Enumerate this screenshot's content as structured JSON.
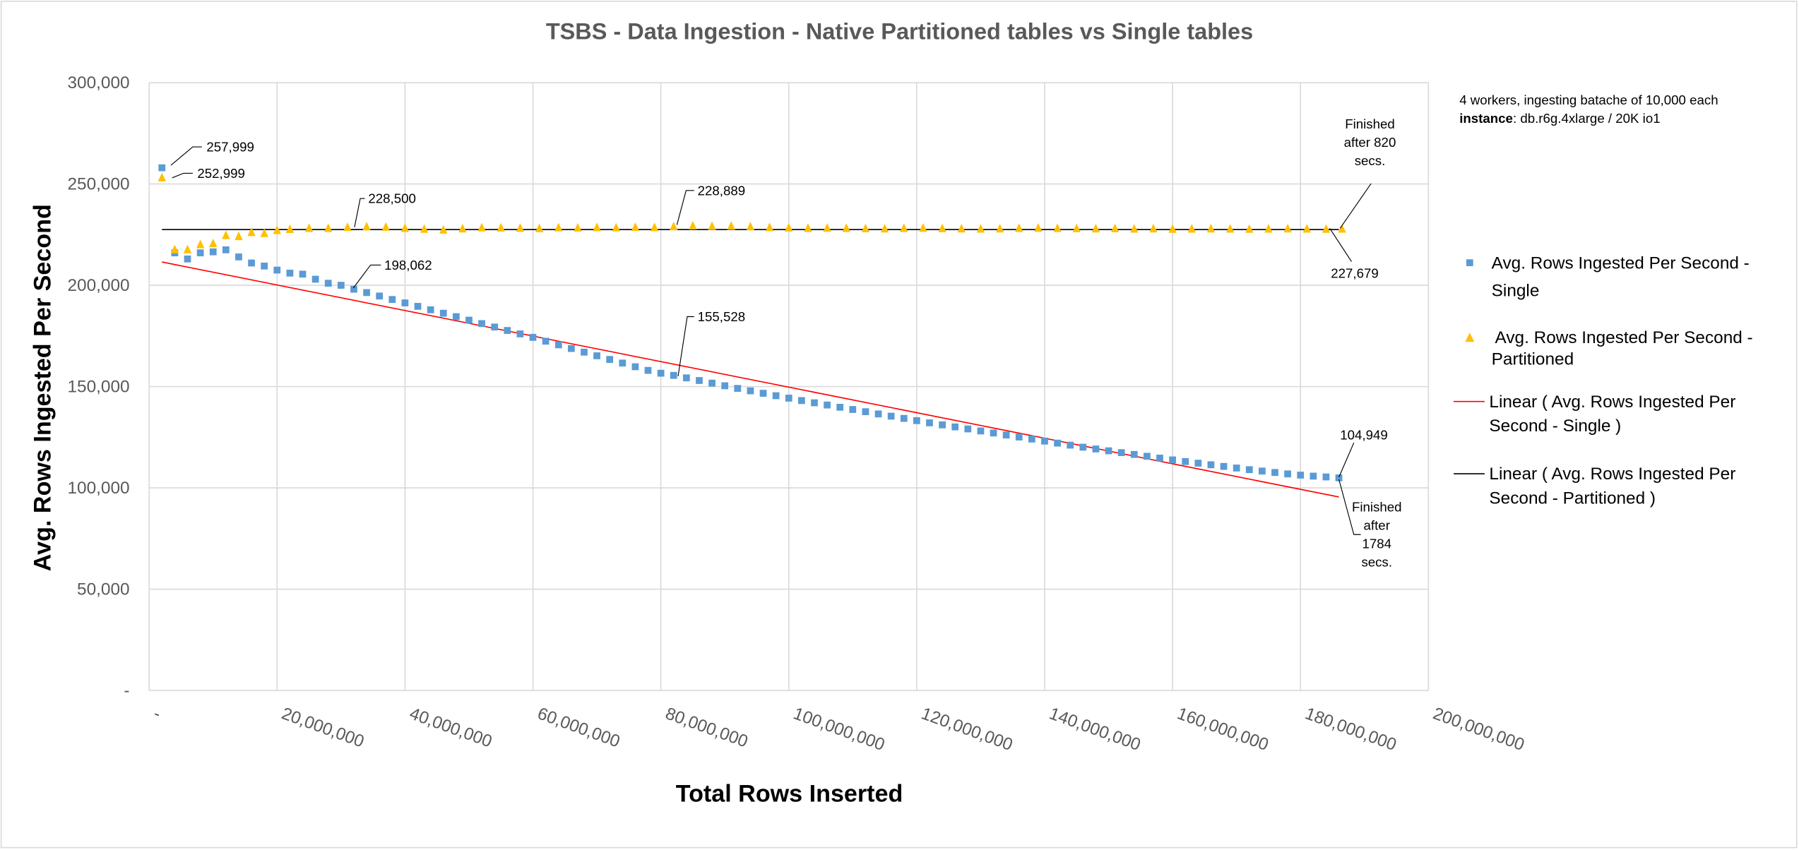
{
  "chart_data": {
    "type": "scatter",
    "title": "TSBS - Data Ingestion - Native Partitioned tables vs Single tables",
    "xlabel": "Total Rows Inserted",
    "ylabel": "Avg. Rows Ingested Per Second",
    "xlim": [
      0,
      200000000
    ],
    "ylim": [
      0,
      300000
    ],
    "grid": true,
    "legend_position": "right",
    "x_tick_labels": [
      "-",
      "20,000,000",
      "40,000,000",
      "60,000,000",
      "80,000,000",
      "100,000,000",
      "120,000,000",
      "140,000,000",
      "160,000,000",
      "180,000,000",
      "200,000,000"
    ],
    "y_tick_labels": [
      "-",
      "50,000",
      "100,000",
      "150,000",
      "200,000",
      "250,000",
      "300,000"
    ],
    "x_unit_multiplier": 1000000,
    "series": [
      {
        "name": "Avg. Rows Ingested Per Second - Single",
        "legend_lines": [
          "Avg. Rows Ingested Per Second -",
          "Single"
        ],
        "marker": "square",
        "color": "#5b9bd5",
        "x_millions": [
          2,
          4,
          6,
          8,
          10,
          12,
          14,
          16,
          18,
          20,
          22,
          24,
          26,
          28,
          30,
          32,
          34,
          36,
          38,
          40,
          42,
          44,
          46,
          48,
          50,
          52,
          54,
          56,
          58,
          60,
          62,
          64,
          66,
          68,
          70,
          72,
          74,
          76,
          78,
          80,
          82,
          84,
          86,
          88,
          90,
          92,
          94,
          96,
          98,
          100,
          102,
          104,
          106,
          108,
          110,
          112,
          114,
          116,
          118,
          120,
          122,
          124,
          126,
          128,
          130,
          132,
          134,
          136,
          138,
          140,
          142,
          144,
          146,
          148,
          150,
          152,
          154,
          156,
          158,
          160,
          162,
          164,
          166,
          168,
          170,
          172,
          174,
          176,
          178,
          180,
          182,
          184,
          186
        ],
        "y": [
          257999,
          216000,
          213000,
          216000,
          216500,
          217500,
          214000,
          211000,
          209500,
          207500,
          206000,
          205500,
          203000,
          201000,
          200000,
          198062,
          196400,
          194700,
          193000,
          191300,
          189600,
          187900,
          186200,
          184500,
          182800,
          181100,
          179400,
          177700,
          176000,
          174300,
          172400,
          170600,
          168800,
          167000,
          165200,
          163400,
          161600,
          159800,
          158000,
          156600,
          155528,
          154300,
          153000,
          151700,
          150400,
          149100,
          147900,
          146700,
          145500,
          144300,
          143100,
          142000,
          140900,
          139800,
          138700,
          137600,
          136500,
          135400,
          134300,
          133200,
          132100,
          131100,
          130100,
          129100,
          128100,
          127100,
          126100,
          125100,
          124100,
          123100,
          122100,
          121100,
          120100,
          119200,
          118300,
          117400,
          116500,
          115600,
          114700,
          113800,
          113000,
          112200,
          111400,
          110600,
          109800,
          109000,
          108300,
          107600,
          106900,
          106300,
          105800,
          105400,
          104949
        ]
      },
      {
        "name": "Avg. Rows Ingested Per Second - Partitioned",
        "legend_lines": [
          "Avg. Rows Ingested Per Second -",
          "Partitioned"
        ],
        "marker": "triangle",
        "color": "#ffc000",
        "x_millions": [
          2,
          4,
          6,
          8,
          10,
          12,
          14,
          16,
          18,
          20,
          22,
          25,
          28,
          31,
          34,
          37,
          40,
          43,
          46,
          49,
          52,
          55,
          58,
          61,
          64,
          67,
          70,
          73,
          76,
          79,
          82,
          85,
          88,
          91,
          94,
          97,
          100,
          103,
          106,
          109,
          112,
          115,
          118,
          121,
          124,
          127,
          130,
          133,
          136,
          139,
          142,
          145,
          148,
          151,
          154,
          157,
          160,
          163,
          166,
          169,
          172,
          175,
          178,
          181,
          184,
          186.5
        ],
        "y": [
          252999,
          217500,
          217500,
          220000,
          220500,
          224500,
          224000,
          226000,
          225500,
          227000,
          227500,
          228000,
          228000,
          228500,
          228800,
          228600,
          228000,
          227600,
          227200,
          227800,
          228300,
          228200,
          228100,
          227900,
          228300,
          228200,
          228400,
          228300,
          228500,
          228400,
          228889,
          229200,
          229000,
          229100,
          228800,
          228400,
          228200,
          228000,
          228100,
          228000,
          227900,
          227800,
          228000,
          228100,
          227900,
          227800,
          227700,
          227800,
          228000,
          228100,
          228000,
          227900,
          227800,
          227900,
          227700,
          227800,
          227600,
          227700,
          227800,
          227700,
          227600,
          227700,
          227800,
          227700,
          227600,
          227679
        ]
      },
      {
        "name": "Linear ( Avg. Rows Ingested Per Second - Single )",
        "legend_lines": [
          "Linear ( Avg. Rows Ingested Per",
          "Second - Single )"
        ],
        "type": "trendline",
        "color": "#ff0000",
        "x_millions": [
          2,
          186
        ],
        "y": [
          211500,
          95500
        ]
      },
      {
        "name": "Linear (  Avg. Rows Ingested Per Second - Partitioned  )",
        "legend_lines": [
          "Linear (  Avg. Rows Ingested Per",
          "Second - Partitioned  )"
        ],
        "type": "trendline",
        "color": "#000000",
        "x_millions": [
          2,
          186
        ],
        "y": [
          227500,
          227500
        ]
      }
    ],
    "annotations": {
      "single_first": "257,999",
      "partitioned_first": "252,999",
      "partitioned_a": "228,500",
      "partitioned_b": "228,889",
      "single_a": "198,062",
      "single_b": "155,528",
      "partitioned_last": "227,679",
      "single_last": "104,949",
      "finished_partitioned": [
        "Finished",
        "after 820",
        "secs."
      ],
      "finished_single": [
        "Finished",
        "after",
        "1784",
        "secs."
      ]
    },
    "note": {
      "line1": "4 workers, ingesting batache of 10,000 each",
      "label": "instance",
      "line2_rest": ": db.r6g.4xlarge / 20K io1"
    }
  }
}
